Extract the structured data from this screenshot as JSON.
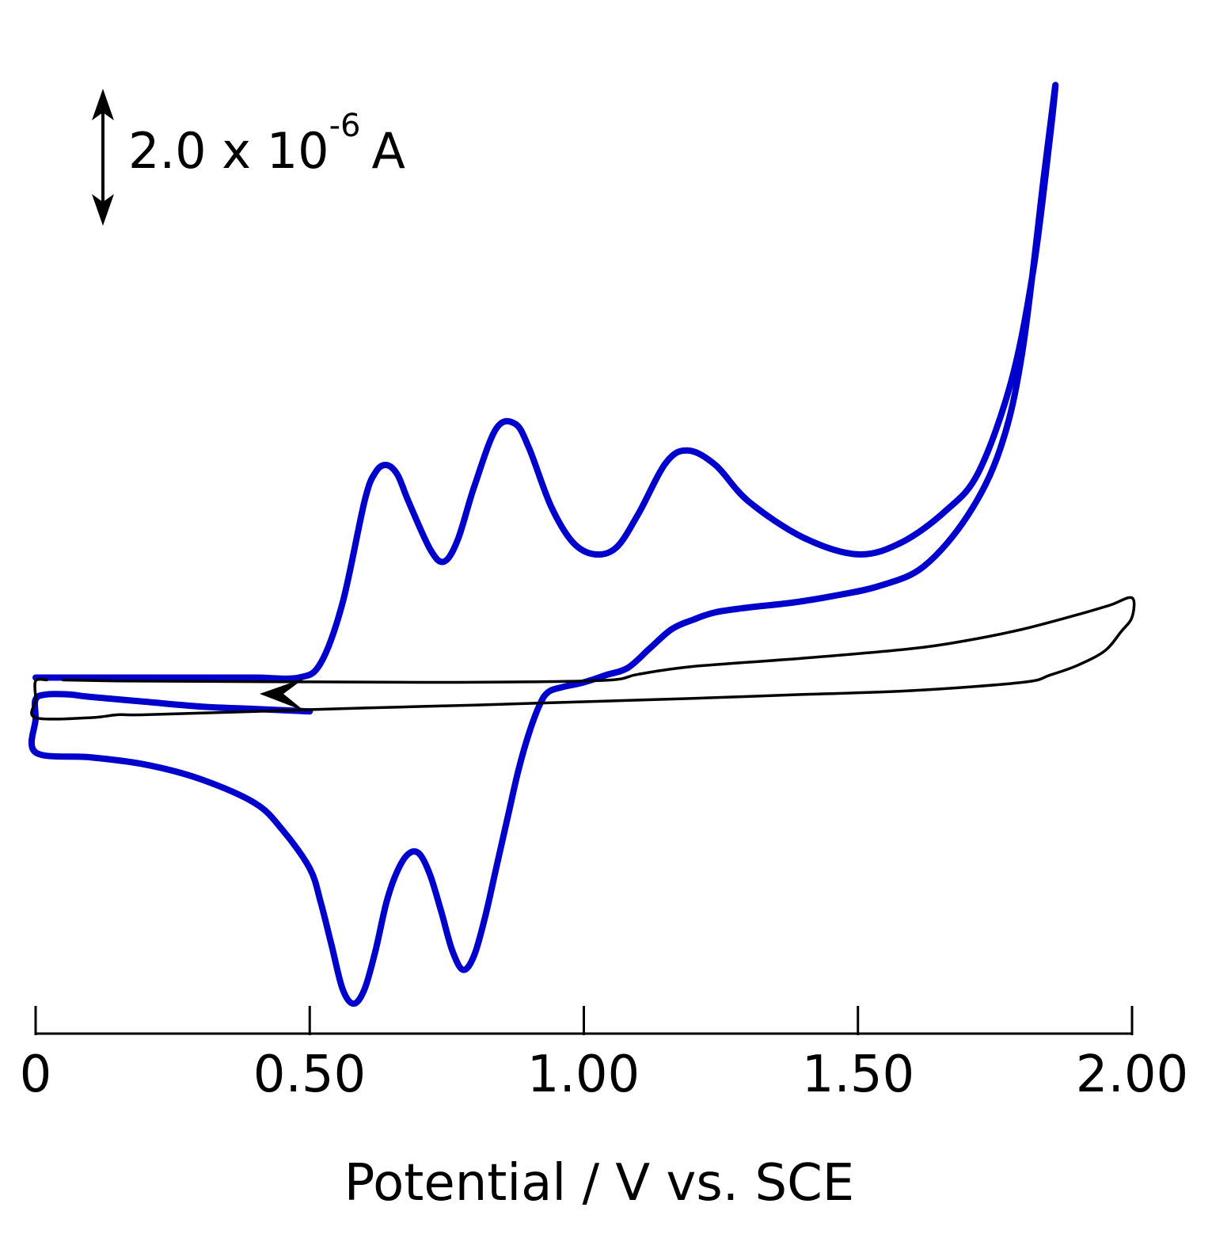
{
  "chart_data": {
    "type": "line",
    "title": "",
    "xlabel": "Potential / V vs. SCE",
    "ylabel": "",
    "xlim": [
      0,
      2.0
    ],
    "ylim": [
      -6.5,
      13.5
    ],
    "x_ticks": [
      0,
      0.5,
      1.0,
      1.5,
      2.0
    ],
    "x_tick_labels": [
      "0",
      "0.50",
      "1.00",
      "1.50",
      "2.00"
    ],
    "grid": false,
    "y_axis_shown": false,
    "scale_bar": {
      "value": "2.0 x 10",
      "exponent": "-6",
      "unit": "A",
      "current_A": 2e-06
    },
    "sweep_direction_arrow": "left",
    "colors": {
      "blue": "#0000cc",
      "black": "#000000"
    },
    "series": [
      {
        "color": "#0000cc",
        "x": [
          0.0,
          0.1,
          0.2,
          0.3,
          0.4,
          0.48,
          0.52,
          0.56,
          0.6,
          0.62,
          0.64,
          0.66,
          0.68,
          0.72,
          0.745,
          0.77,
          0.8,
          0.84,
          0.875,
          0.9,
          0.94,
          0.98,
          1.02,
          1.06,
          1.1,
          1.15,
          1.19,
          1.24,
          1.3,
          1.4,
          1.5,
          1.58,
          1.66,
          1.72,
          1.78,
          1.82,
          1.85,
          1.86,
          1.84,
          1.8,
          1.76,
          1.7,
          1.62,
          1.54,
          1.46,
          1.38,
          1.3,
          1.24,
          1.2,
          1.16,
          1.12,
          1.08,
          1.04,
          1.0,
          0.96,
          0.935,
          0.92,
          0.9,
          0.88,
          0.86,
          0.84,
          0.82,
          0.8,
          0.78,
          0.76,
          0.74,
          0.72,
          0.7,
          0.68,
          0.66,
          0.64,
          0.62,
          0.6,
          0.58,
          0.56,
          0.54,
          0.52,
          0.5,
          0.45,
          0.4,
          0.3,
          0.2,
          0.1,
          0.0,
          0.0,
          0.0,
          0.02,
          0.06,
          0.1,
          0.2,
          0.3,
          0.4,
          0.5
        ],
        "y": [
          0.05,
          0.05,
          0.05,
          0.05,
          0.05,
          0.05,
          0.35,
          1.6,
          3.7,
          4.3,
          4.45,
          4.25,
          3.7,
          2.7,
          2.45,
          2.9,
          4.0,
          5.2,
          5.3,
          4.8,
          3.6,
          2.85,
          2.6,
          2.75,
          3.45,
          4.5,
          4.75,
          4.45,
          3.7,
          2.95,
          2.6,
          2.85,
          3.5,
          4.3,
          6.2,
          8.5,
          11.2,
          12.3,
          10.5,
          6.8,
          4.8,
          3.4,
          2.35,
          1.95,
          1.75,
          1.6,
          1.5,
          1.4,
          1.25,
          1.05,
          0.65,
          0.25,
          0.1,
          -0.05,
          -0.15,
          -0.25,
          -0.5,
          -1.1,
          -1.9,
          -2.9,
          -3.9,
          -4.9,
          -5.7,
          -6.0,
          -5.6,
          -4.8,
          -4.05,
          -3.6,
          -3.6,
          -3.95,
          -4.6,
          -5.6,
          -6.4,
          -6.7,
          -6.4,
          -5.5,
          -4.6,
          -3.9,
          -3.1,
          -2.55,
          -2.05,
          -1.75,
          -1.6,
          -1.5,
          -0.8,
          -0.4,
          -0.3,
          -0.3,
          -0.35,
          -0.45,
          -0.55,
          -0.6,
          -0.65
        ]
      },
      {
        "color": "#000000",
        "x": [
          0.05,
          0.15,
          0.3,
          0.5,
          0.7,
          0.9,
          1.05,
          1.1,
          1.2,
          1.4,
          1.6,
          1.7,
          1.8,
          1.9,
          1.96,
          2.0,
          2.0,
          1.98,
          1.95,
          1.9,
          1.85,
          1.8,
          1.6,
          1.4,
          1.2,
          1.0,
          0.8,
          0.6,
          0.4,
          0.2,
          0.15,
          0.1,
          0.0,
          0.0,
          0.0,
          0.02
        ],
        "y": [
          0.0,
          -0.02,
          -0.03,
          -0.04,
          -0.05,
          -0.04,
          0.0,
          0.12,
          0.28,
          0.45,
          0.65,
          0.82,
          1.05,
          1.35,
          1.55,
          1.7,
          1.3,
          1.0,
          0.6,
          0.3,
          0.1,
          -0.05,
          -0.22,
          -0.3,
          -0.38,
          -0.45,
          -0.52,
          -0.58,
          -0.65,
          -0.72,
          -0.72,
          -0.78,
          -0.78,
          -0.4,
          -0.02,
          0.0
        ]
      }
    ]
  }
}
